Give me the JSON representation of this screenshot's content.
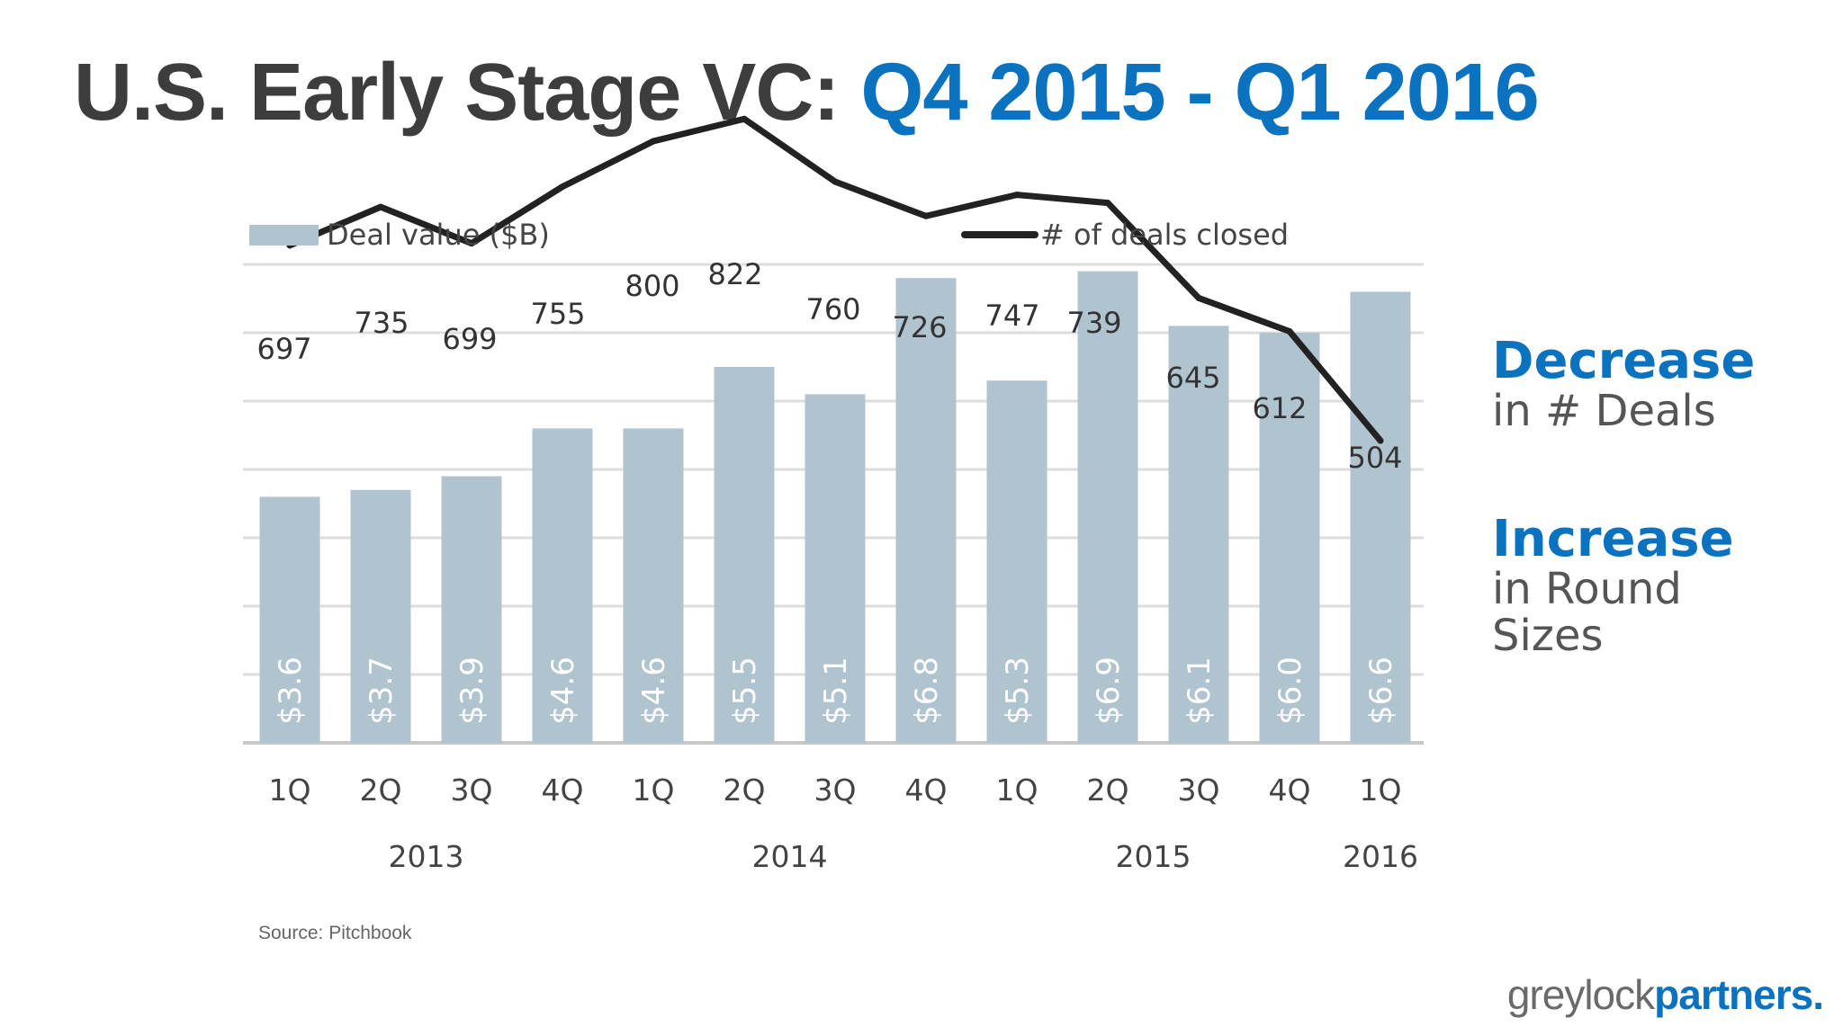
{
  "title": {
    "main": "U.S. Early Stage VC:",
    "accent": "Q4 2015 - Q1 2016"
  },
  "chart_data": {
    "type": "bar",
    "categories": [
      "1Q",
      "2Q",
      "3Q",
      "4Q",
      "1Q",
      "2Q",
      "3Q",
      "4Q",
      "1Q",
      "2Q",
      "3Q",
      "4Q",
      "1Q"
    ],
    "groups": [
      {
        "label": "2013",
        "span": [
          0,
          3
        ]
      },
      {
        "label": "2014",
        "span": [
          4,
          7
        ]
      },
      {
        "label": "2015",
        "span": [
          8,
          11
        ]
      },
      {
        "label": "2016",
        "span": [
          12,
          12
        ]
      }
    ],
    "series": [
      {
        "name": "Deal value ($B)",
        "type": "bar",
        "values": [
          3.6,
          3.7,
          3.9,
          4.6,
          4.6,
          5.5,
          5.1,
          6.8,
          5.3,
          6.9,
          6.1,
          6.0,
          6.6
        ],
        "labels": [
          "$3.6",
          "$3.7",
          "$3.9",
          "$4.6",
          "$4.6",
          "$5.5",
          "$5.1",
          "$6.8",
          "$5.3",
          "$6.9",
          "$6.1",
          "$6.0",
          "$6.6"
        ],
        "color": "#b0c4cf",
        "ylim": [
          0,
          7
        ]
      },
      {
        "name": "# of deals closed",
        "type": "line",
        "values": [
          697,
          735,
          699,
          755,
          800,
          822,
          760,
          726,
          747,
          739,
          645,
          612,
          504
        ],
        "labels": [
          "697",
          "735",
          "699",
          "755",
          "800",
          "822",
          "760",
          "726",
          "747",
          "739",
          "645",
          "612",
          "504"
        ],
        "color": "#222222"
      }
    ],
    "grid": true,
    "legend": "top"
  },
  "callouts": [
    {
      "head": "Decrease",
      "lines": [
        "in # Deals"
      ]
    },
    {
      "head": "Increase",
      "lines": [
        "in Round",
        "Sizes"
      ]
    }
  ],
  "source": "Source: Pitchbook",
  "logo": {
    "part1": "greylock",
    "part2": "partners."
  },
  "colors": {
    "accent": "#0a72be",
    "title": "#3d3d3d",
    "bar": "#b0c4cf",
    "line": "#222222"
  }
}
